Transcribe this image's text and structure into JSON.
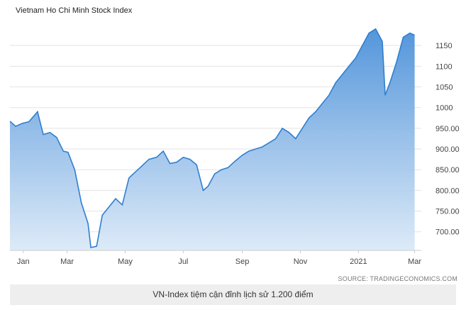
{
  "chart_data": {
    "type": "area",
    "title": "Vietnam Ho Chi Minh Stock Index",
    "xlabel": "",
    "ylabel": "",
    "x_ticks": [
      "Jan",
      "Mar",
      "May",
      "Jul",
      "Sep",
      "Nov",
      "2021",
      "Mar"
    ],
    "y_ticks": [
      "700.00",
      "750.00",
      "800.00",
      "850.00",
      "900.00",
      "950.00",
      "1000",
      "1050",
      "1100",
      "1150"
    ],
    "ylim": [
      655,
      1200
    ],
    "grid": true,
    "series": [
      {
        "x": [
          "2020-01-01",
          "2020-01-07",
          "2020-01-14",
          "2020-01-21",
          "2020-01-30",
          "2020-02-05",
          "2020-02-12",
          "2020-02-19",
          "2020-02-26",
          "2020-03-02",
          "2020-03-09",
          "2020-03-16",
          "2020-03-23",
          "2020-03-26",
          "2020-04-01",
          "2020-04-07",
          "2020-04-14",
          "2020-04-21",
          "2020-04-28",
          "2020-05-05",
          "2020-05-12",
          "2020-05-19",
          "2020-05-26",
          "2020-06-03",
          "2020-06-10",
          "2020-06-17",
          "2020-06-24",
          "2020-07-01",
          "2020-07-08",
          "2020-07-15",
          "2020-07-22",
          "2020-07-27",
          "2020-08-03",
          "2020-08-10",
          "2020-08-17",
          "2020-08-24",
          "2020-09-01",
          "2020-09-08",
          "2020-09-15",
          "2020-09-22",
          "2020-09-29",
          "2020-10-06",
          "2020-10-13",
          "2020-10-20",
          "2020-10-27",
          "2020-11-03",
          "2020-11-10",
          "2020-11-17",
          "2020-11-24",
          "2020-12-01",
          "2020-12-08",
          "2020-12-15",
          "2020-12-22",
          "2020-12-29",
          "2021-01-05",
          "2021-01-12",
          "2021-01-19",
          "2021-01-26",
          "2021-01-29",
          "2021-02-03",
          "2021-02-10",
          "2021-02-17",
          "2021-02-24",
          "2021-03-01"
        ],
        "values": [
          967,
          955,
          962,
          966,
          990,
          935,
          940,
          928,
          895,
          892,
          850,
          770,
          720,
          662,
          665,
          740,
          760,
          780,
          765,
          830,
          845,
          860,
          875,
          880,
          895,
          865,
          868,
          880,
          875,
          862,
          800,
          810,
          840,
          850,
          855,
          870,
          885,
          895,
          900,
          905,
          915,
          925,
          950,
          940,
          925,
          950,
          975,
          990,
          1010,
          1030,
          1060,
          1080,
          1100,
          1120,
          1150,
          1180,
          1190,
          1160,
          1030,
          1060,
          1110,
          1170,
          1180,
          1175
        ]
      }
    ]
  },
  "source_text": "SOURCE: TRADINGECONOMICS.COM",
  "caption": "VN-Index tiệm cận đỉnh lịch sử 1.200 điểm",
  "colors": {
    "line": "#2f7fcf",
    "fill_top": "#4a90d9",
    "fill_bottom": "#d9e8f7",
    "grid": "#e3e3e3"
  }
}
